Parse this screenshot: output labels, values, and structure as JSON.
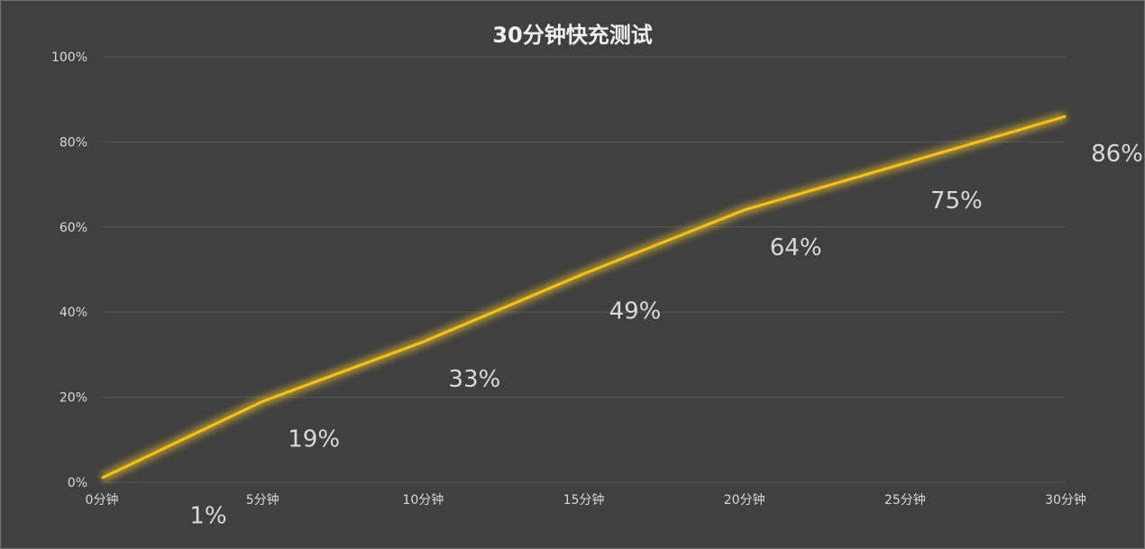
{
  "chart_data": {
    "type": "line",
    "title": "30分钟快充测试",
    "categories": [
      "0分钟",
      "5分钟",
      "10分钟",
      "15分钟",
      "20分钟",
      "25分钟",
      "30分钟"
    ],
    "series": [
      {
        "values": [
          1,
          19,
          33,
          49,
          64,
          75,
          86
        ],
        "labels": [
          "1%",
          "19%",
          "33%",
          "49%",
          "64%",
          "75%",
          "86%"
        ],
        "color": "#ffc000",
        "glow_color": "#ffd52e"
      }
    ],
    "ylim": [
      0,
      100
    ],
    "yticks": [
      0,
      20,
      40,
      60,
      80,
      100
    ],
    "ytick_labels": [
      "0%",
      "20%",
      "40%",
      "60%",
      "80%",
      "100%"
    ],
    "grid": true,
    "legend": "none",
    "background_color": "#404040",
    "gridline_color": "#595959"
  }
}
